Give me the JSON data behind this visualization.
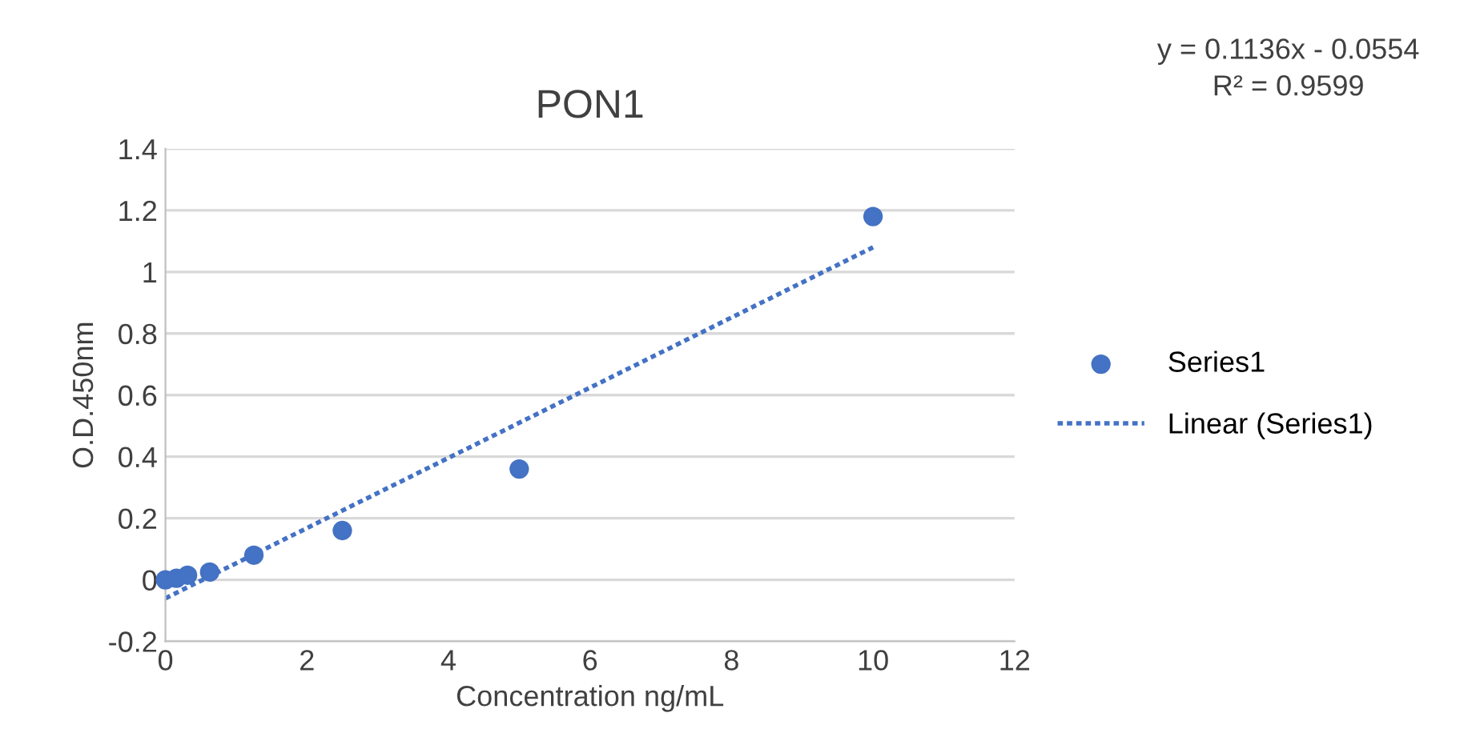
{
  "chart_data": {
    "type": "scatter",
    "title": "PON1",
    "xlabel": "Concentration ng/mL",
    "ylabel": "O.D.450nm",
    "xlim": [
      0,
      12
    ],
    "xticks": [
      0,
      2,
      4,
      6,
      8,
      10,
      12
    ],
    "ylim": [
      -0.2,
      1.4
    ],
    "yticks": [
      -0.2,
      0,
      0.2,
      0.4,
      0.6,
      0.8,
      1,
      1.2,
      1.4
    ],
    "grid": "y",
    "legend": "right",
    "series": [
      {
        "name": "Series1",
        "marker": "circle",
        "color": "#4472c4",
        "x": [
          0,
          0.156,
          0.3125,
          0.625,
          1.25,
          2.5,
          5,
          10
        ],
        "values": [
          0,
          0.005,
          0.015,
          0.025,
          0.08,
          0.16,
          0.36,
          1.18
        ]
      },
      {
        "name": "Linear (Series1)",
        "type": "line",
        "marker": "none",
        "color": "#4472c4",
        "line_style": "dotted",
        "x": [
          0,
          10
        ],
        "values": [
          -0.06,
          1.08
        ]
      }
    ],
    "annotations": [
      "y = 0.1136x - 0.0554",
      "R² = 0.9599"
    ]
  }
}
